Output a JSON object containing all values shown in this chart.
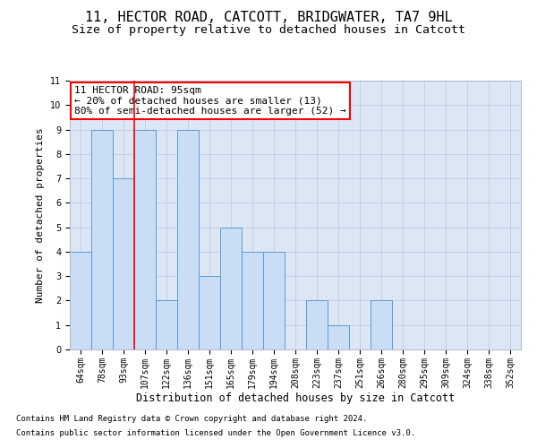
{
  "title1": "11, HECTOR ROAD, CATCOTT, BRIDGWATER, TA7 9HL",
  "title2": "Size of property relative to detached houses in Catcott",
  "xlabel": "Distribution of detached houses by size in Catcott",
  "ylabel": "Number of detached properties",
  "categories": [
    "64sqm",
    "78sqm",
    "93sqm",
    "107sqm",
    "122sqm",
    "136sqm",
    "151sqm",
    "165sqm",
    "179sqm",
    "194sqm",
    "208sqm",
    "223sqm",
    "237sqm",
    "251sqm",
    "266sqm",
    "280sqm",
    "295sqm",
    "309sqm",
    "324sqm",
    "338sqm",
    "352sqm"
  ],
  "values": [
    4,
    9,
    7,
    9,
    2,
    9,
    3,
    5,
    4,
    4,
    0,
    2,
    1,
    0,
    2,
    0,
    0,
    0,
    0,
    0,
    0
  ],
  "bar_color": "#c9ddf5",
  "bar_edge_color": "#5b9bd5",
  "red_line_x": 2.5,
  "annotation_text": "11 HECTOR ROAD: 95sqm\n← 20% of detached houses are smaller (13)\n80% of semi-detached houses are larger (52) →",
  "annotation_box_facecolor": "white",
  "annotation_box_edgecolor": "red",
  "ylim": [
    0,
    11
  ],
  "yticks": [
    0,
    1,
    2,
    3,
    4,
    5,
    6,
    7,
    8,
    9,
    10,
    11
  ],
  "footer1": "Contains HM Land Registry data © Crown copyright and database right 2024.",
  "footer2": "Contains public sector information licensed under the Open Government Licence v3.0.",
  "fig_facecolor": "#ffffff",
  "plot_facecolor": "#dce6f5",
  "grid_color": "#b8c8e0",
  "title1_fontsize": 11,
  "title2_fontsize": 9.5,
  "xlabel_fontsize": 8.5,
  "ylabel_fontsize": 8,
  "tick_fontsize": 7,
  "annotation_fontsize": 8,
  "footer_fontsize": 6.5,
  "red_line_lw": 1.2,
  "bar_lw": 0.7
}
